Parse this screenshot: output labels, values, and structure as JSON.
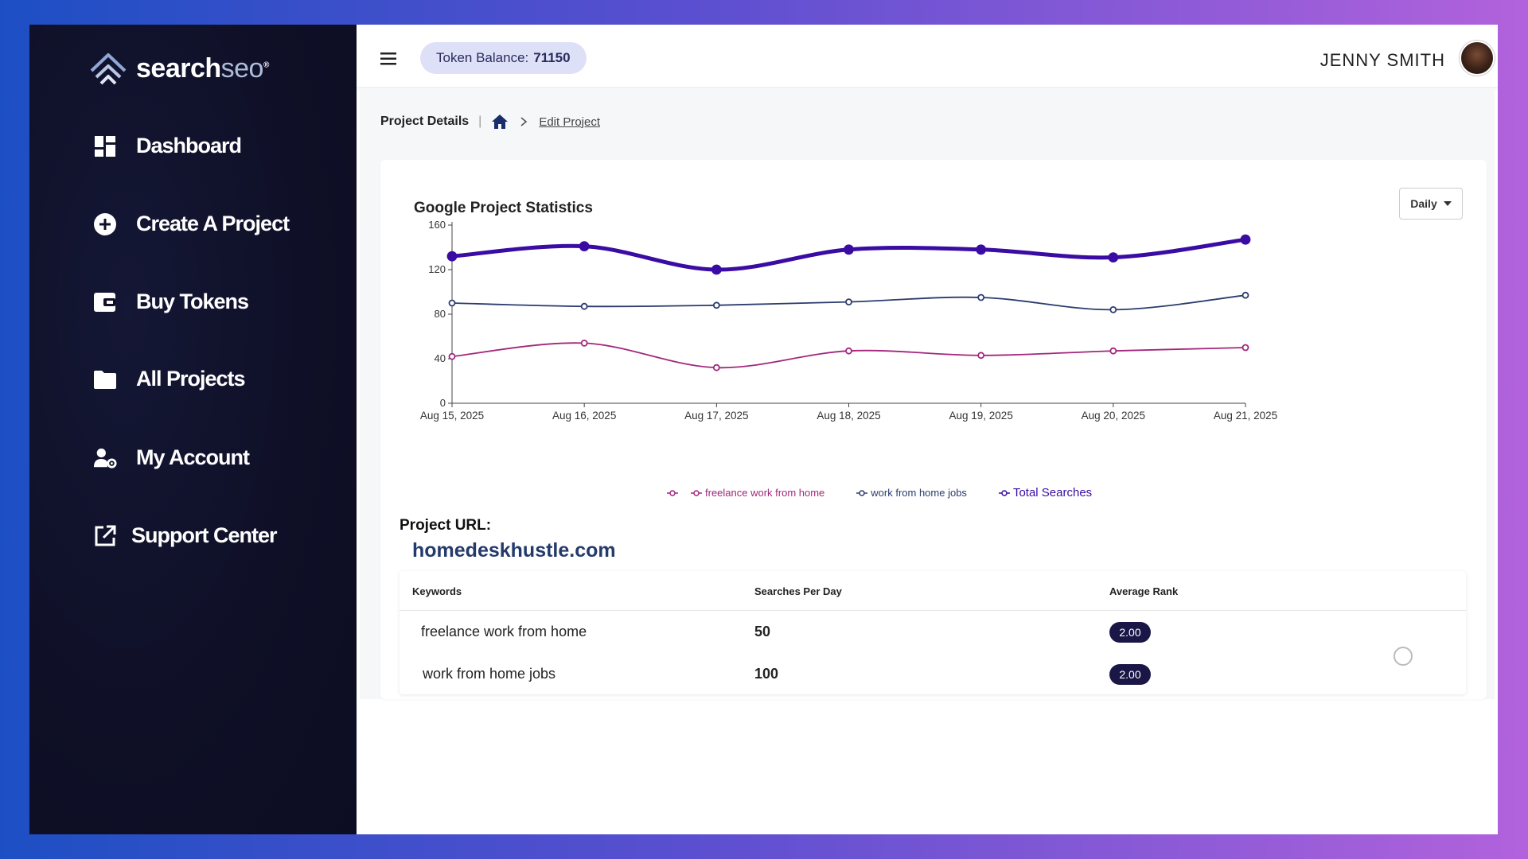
{
  "brand": {
    "name_main": "search",
    "name_accent": "seo",
    "registered": "®"
  },
  "sidebar": {
    "items": [
      {
        "label": "Dashboard",
        "icon": "dashboard-icon"
      },
      {
        "label": "Create A Project",
        "icon": "plus-circle-icon"
      },
      {
        "label": "Buy Tokens",
        "icon": "wallet-icon"
      },
      {
        "label": "All Projects",
        "icon": "folder-icon"
      },
      {
        "label": "My Account",
        "icon": "user-gear-icon"
      },
      {
        "label": "Support Center",
        "icon": "external-link-icon"
      }
    ]
  },
  "header": {
    "token_label": "Token Balance:",
    "token_value": "71150",
    "user_name": "JENNY SMITH"
  },
  "breadcrumb": {
    "title": "Project Details",
    "current": "Edit Project"
  },
  "chart_data": {
    "type": "line",
    "title": "Google Project Statistics",
    "period_select": "Daily",
    "categories": [
      "Aug 15, 2025",
      "Aug 16, 2025",
      "Aug 17, 2025",
      "Aug 18, 2025",
      "Aug 19, 2025",
      "Aug 20, 2025",
      "Aug 21, 2025"
    ],
    "ylim": [
      0,
      160
    ],
    "yticks": [
      0,
      40,
      80,
      120,
      160
    ],
    "series": [
      {
        "name": "freelance work from home",
        "color": "#a3267c",
        "values": [
          42,
          54,
          32,
          47,
          43,
          47,
          50
        ]
      },
      {
        "name": "work from home jobs",
        "color": "#2c3b6e",
        "values": [
          90,
          87,
          88,
          91,
          95,
          84,
          97
        ]
      },
      {
        "name": "Total Searches",
        "color": "#3a0ca3",
        "values": [
          132,
          141,
          120,
          138,
          138,
          131,
          147
        ]
      }
    ]
  },
  "project": {
    "url_label": "Project URL:",
    "url": "homedeskhustle.com",
    "table": {
      "headers": [
        "Keywords",
        "Searches Per Day",
        "Average Rank"
      ],
      "rows": [
        {
          "keyword": "freelance work from home",
          "searches": "50",
          "rank": "2.00"
        },
        {
          "keyword": "work from home jobs",
          "searches": "100",
          "rank": "2.00"
        }
      ]
    }
  }
}
